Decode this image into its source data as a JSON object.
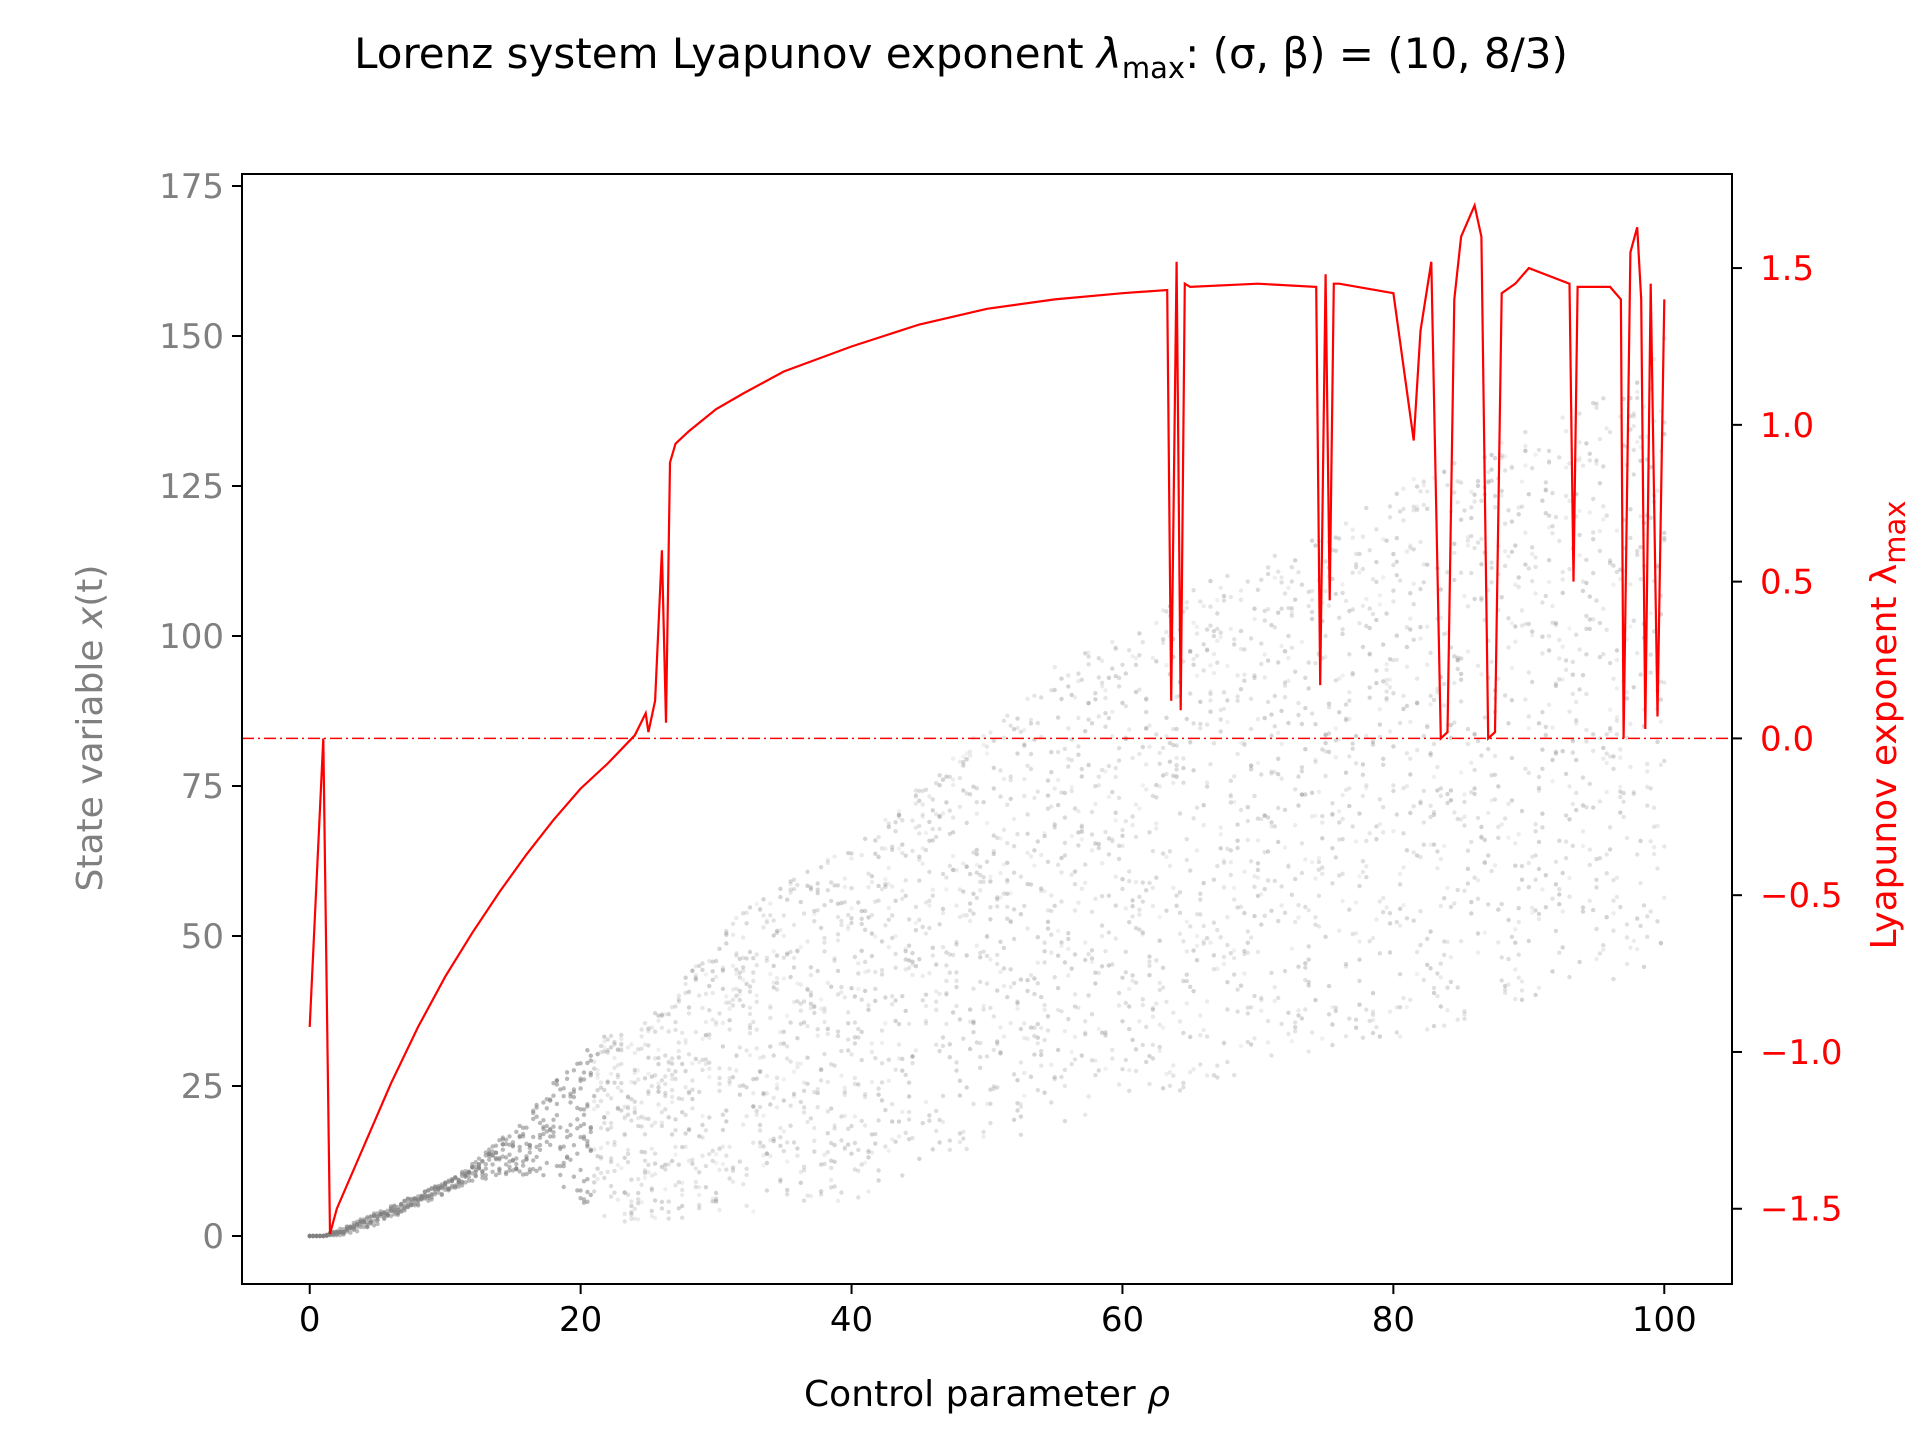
{
  "title": {
    "prefix": "Lorenz system Lyapunov exponent ",
    "lambda": "λ",
    "sub": "max",
    "suffix": ": (σ, β) = (10, 8/3)"
  },
  "colors": {
    "accent": "#ff0000",
    "scatter": "#808080",
    "axis": "#000000",
    "left_axis_text": "#808080"
  },
  "chart_data": {
    "type": "scatter",
    "title": "Lorenz system Lyapunov exponent λmax: (σ, β) = (10, 8/3)",
    "xlabel": "Control parameter ρ",
    "ylabel_left": "State variable x(t)",
    "ylabel_right": "Lyapunov exponent λmax",
    "ylabel_right_parts": {
      "text": "Lyapunov exponent λ",
      "sub": "max"
    },
    "ylabel_left_parts": {
      "text": "State variable ",
      "var": "x",
      "arg": "(t)"
    },
    "xlabel_parts": {
      "text": "Control parameter ",
      "var": "ρ"
    },
    "xlim": [
      -5,
      105
    ],
    "ylim_left": [
      -8,
      177
    ],
    "ylim_right": [
      -1.74,
      1.8
    ],
    "x_ticks": [
      0,
      20,
      40,
      60,
      80,
      100
    ],
    "x_tick_labels": [
      "0",
      "20",
      "40",
      "60",
      "80",
      "100"
    ],
    "y_left_ticks": [
      0,
      25,
      50,
      75,
      100,
      125,
      150,
      175
    ],
    "y_left_tick_labels": [
      "0",
      "25",
      "50",
      "75",
      "100",
      "125",
      "150",
      "175"
    ],
    "y_right_ticks": [
      -1.5,
      -1.0,
      -0.5,
      0.0,
      0.5,
      1.0,
      1.5
    ],
    "y_right_tick_labels": [
      "−1.5",
      "−1.0",
      "−0.5",
      "0.0",
      "0.5",
      "1.0",
      "1.5"
    ],
    "grid": false,
    "reference_line": {
      "axis": "right",
      "y": 0.0,
      "style": "dashdot",
      "color": "#ff0000"
    },
    "series": [
      {
        "type": "scatter",
        "axis": "left",
        "description": "bifurcation envelope of x(t) samples",
        "rho": [
          0,
          1,
          2,
          4,
          6,
          8,
          10,
          12,
          14,
          16,
          18,
          20,
          21,
          24,
          26,
          28,
          30,
          35,
          40,
          45,
          50,
          55,
          60,
          65,
          70,
          75,
          80,
          85,
          90,
          95,
          100
        ],
        "x_min": [
          0,
          0,
          0,
          1,
          3,
          5,
          7,
          9,
          10,
          10,
          9,
          6,
          3,
          2,
          2,
          3,
          3,
          4,
          6,
          10,
          15,
          18,
          22,
          24,
          28,
          30,
          32,
          35,
          38,
          42,
          45
        ],
        "x_max": [
          0,
          0,
          1,
          3,
          5,
          7,
          9,
          12,
          16,
          20,
          26,
          30,
          33,
          35,
          38,
          45,
          50,
          60,
          65,
          75,
          85,
          95,
          100,
          108,
          112,
          118,
          125,
          130,
          135,
          140,
          150
        ]
      },
      {
        "type": "line",
        "axis": "right",
        "name": "λmax",
        "x": [
          0,
          1,
          1.5,
          2,
          4,
          6,
          8,
          10,
          12,
          14,
          16,
          18,
          20,
          22,
          24,
          24.8,
          25,
          25.5,
          26,
          26.3,
          26.6,
          27,
          28,
          30,
          32,
          35,
          40,
          45,
          50,
          55,
          60,
          63.3,
          63.6,
          64,
          64.3,
          64.6,
          65,
          70,
          74.3,
          74.6,
          75,
          75.3,
          75.6,
          76,
          80,
          81.5,
          82,
          82.8,
          83.5,
          84,
          84.5,
          85,
          86,
          86.5,
          87,
          87.5,
          88,
          89,
          90,
          93,
          93.3,
          93.6,
          96,
          96.8,
          97,
          97.5,
          98,
          98.3,
          98.6,
          99,
          99.5,
          100
        ],
        "y": [
          -0.92,
          0.0,
          -1.58,
          -1.5,
          -1.3,
          -1.1,
          -0.92,
          -0.76,
          -0.62,
          -0.49,
          -0.37,
          -0.26,
          -0.16,
          -0.08,
          0.01,
          0.08,
          0.02,
          0.12,
          0.6,
          0.05,
          0.88,
          0.94,
          0.98,
          1.05,
          1.1,
          1.17,
          1.25,
          1.32,
          1.37,
          1.4,
          1.42,
          1.43,
          0.12,
          1.52,
          0.09,
          1.45,
          1.44,
          1.45,
          1.44,
          0.17,
          1.48,
          0.44,
          1.45,
          1.45,
          1.42,
          0.95,
          1.3,
          1.52,
          0.0,
          0.02,
          1.4,
          1.6,
          1.7,
          1.6,
          0.0,
          0.02,
          1.42,
          1.45,
          1.5,
          1.45,
          0.5,
          1.44,
          1.44,
          1.4,
          0.0,
          1.55,
          1.63,
          1.4,
          0.03,
          1.45,
          0.07,
          1.4
        ]
      }
    ]
  }
}
